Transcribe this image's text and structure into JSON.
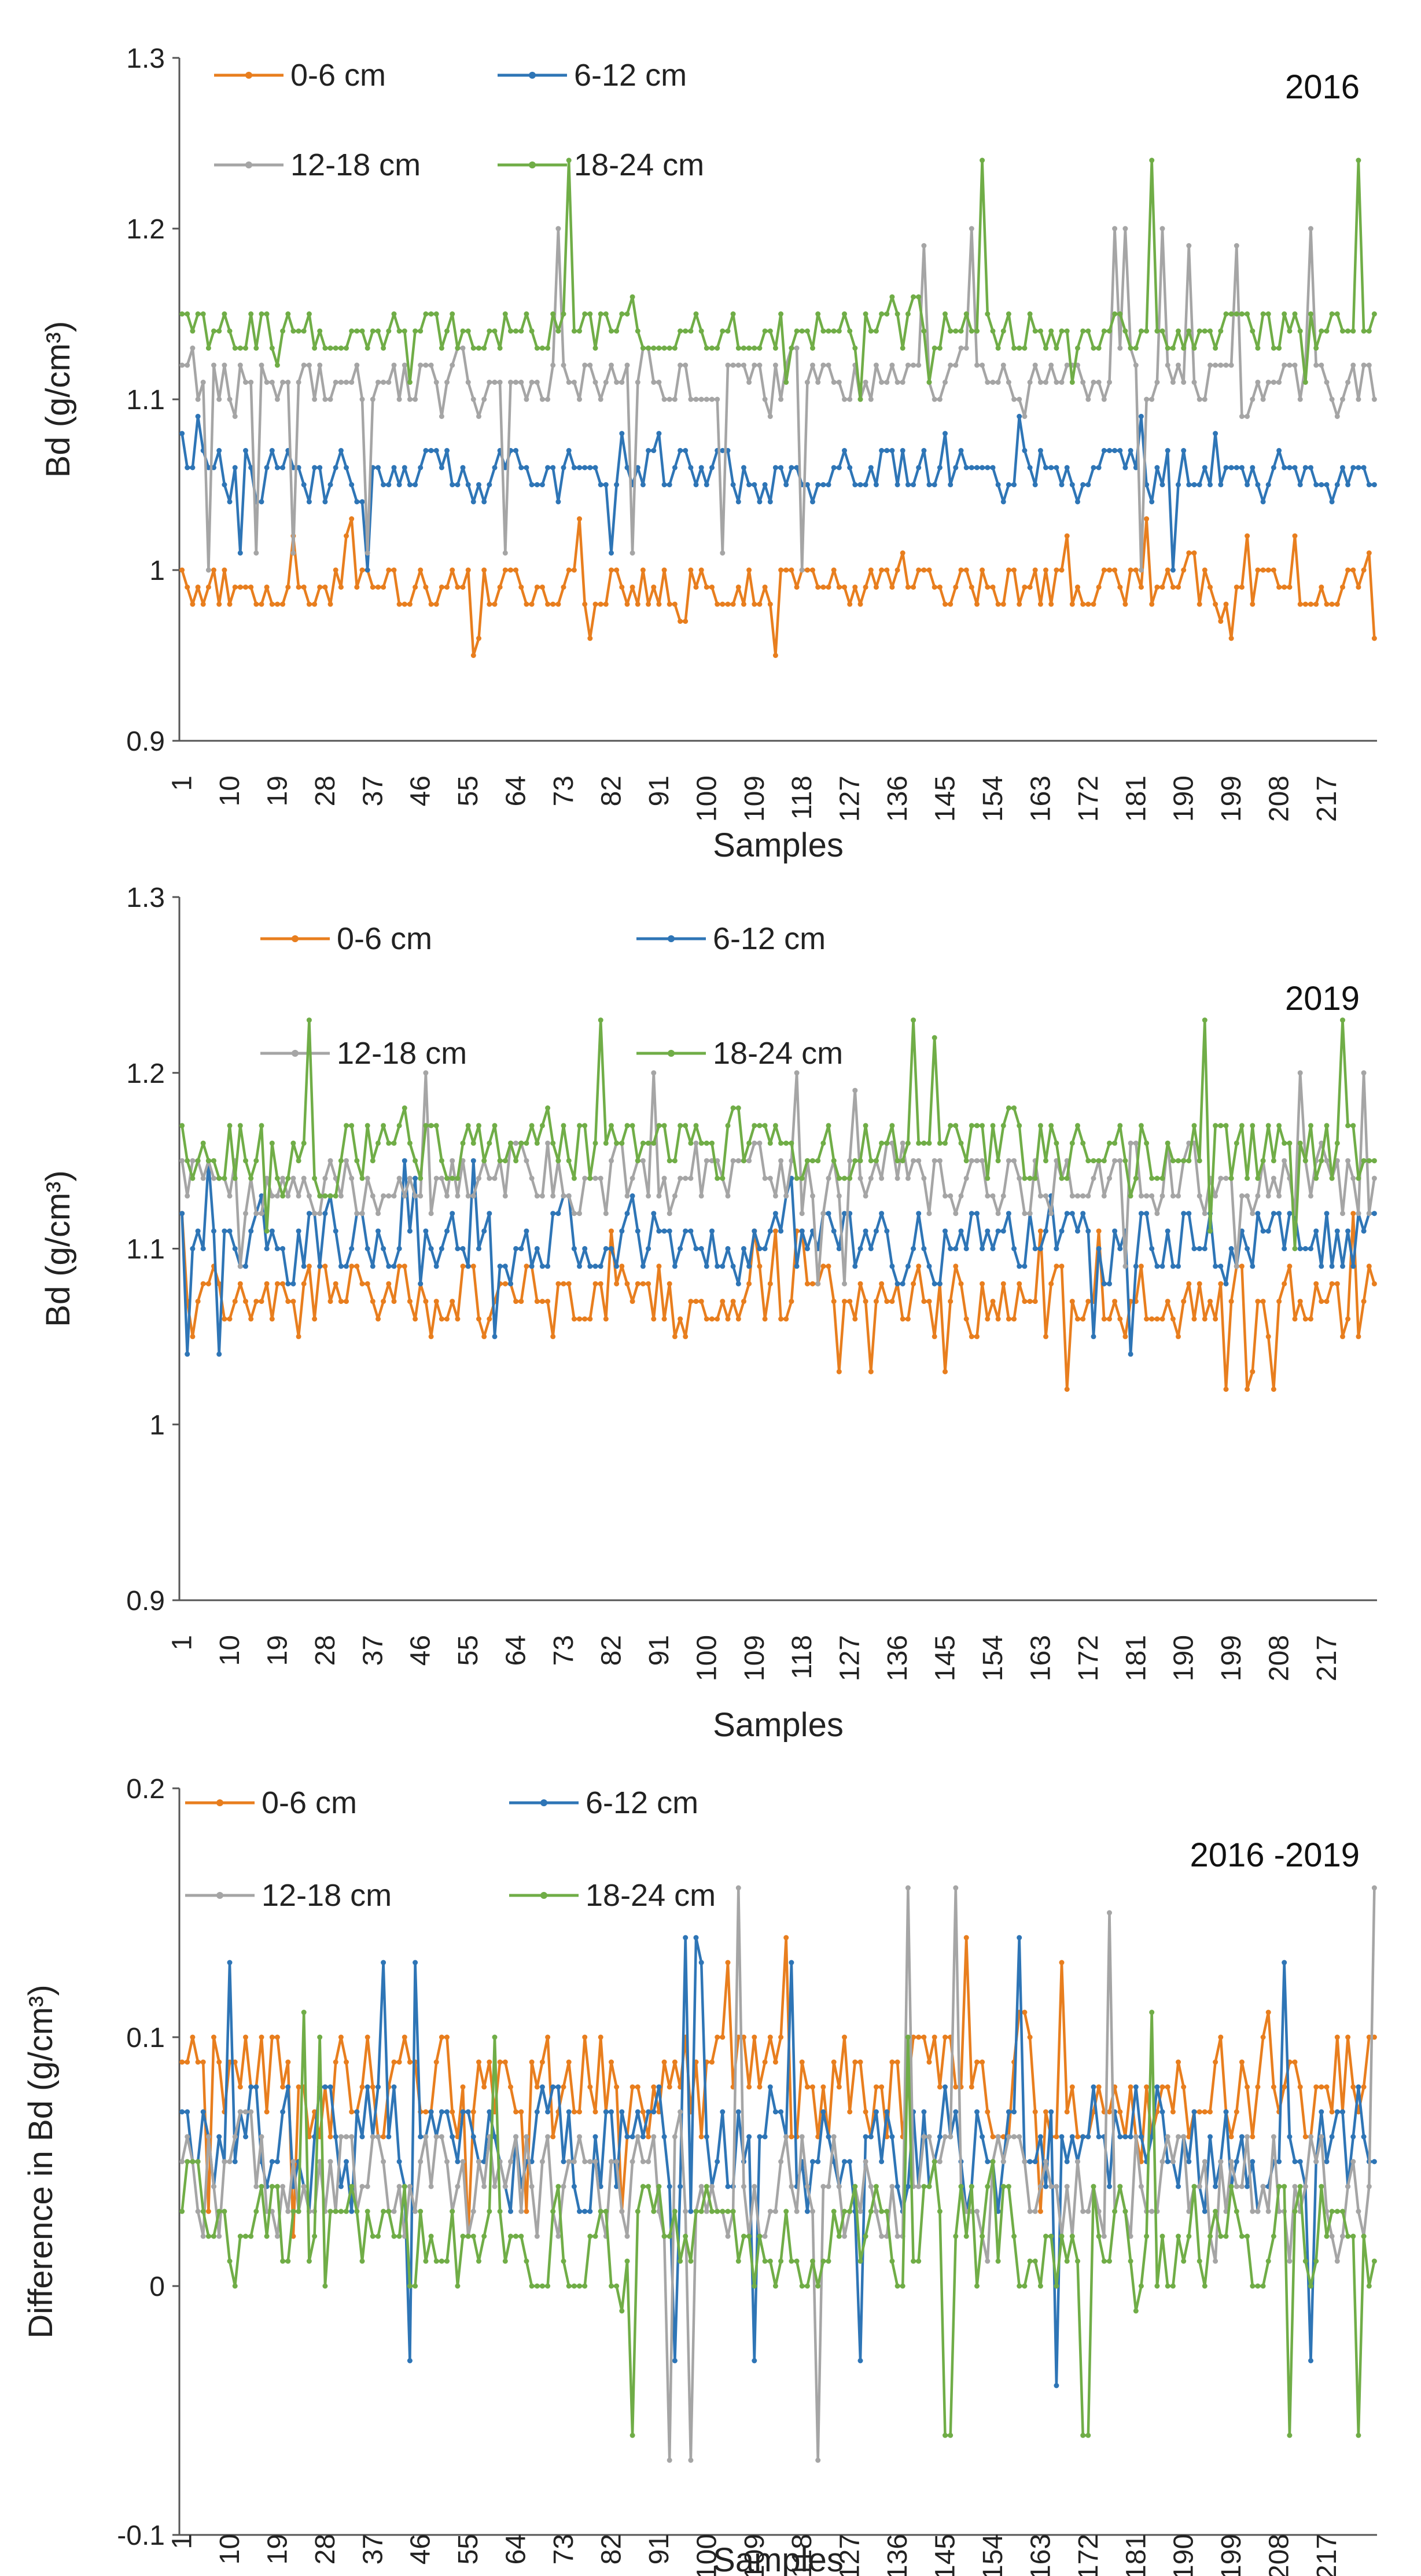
{
  "chart_data": [
    {
      "type": "line",
      "title": "2016",
      "xlabel": "Samples",
      "ylabel": "Bd (g/cm³)",
      "ylim": [
        0.9,
        1.3
      ],
      "yticks": [
        "0.9",
        "1",
        "1.1",
        "1.2",
        "1.3"
      ],
      "x_tick_labels": [
        "1",
        "10",
        "19",
        "28",
        "37",
        "46",
        "55",
        "64",
        "73",
        "82",
        "91",
        "100",
        "109",
        "118",
        "127",
        "136",
        "145",
        "154",
        "163",
        "172",
        "181",
        "190",
        "199",
        "208",
        "217"
      ],
      "x_count": 226,
      "series": [
        {
          "name": "0-6 cm",
          "color": "#E87E1E",
          "approx_mean": 0.99,
          "approx_amplitude": 0.02,
          "approx_min": 0.95,
          "approx_max": 1.03
        },
        {
          "name": "6-12 cm",
          "color": "#2E75B6",
          "approx_mean": 1.055,
          "approx_amplitude": 0.02,
          "approx_min": 1.0,
          "approx_max": 1.09
        },
        {
          "name": "12-18 cm",
          "color": "#A5A5A5",
          "approx_mean": 1.11,
          "approx_amplitude": 0.025,
          "approx_min": 1.0,
          "approx_max": 1.2
        },
        {
          "name": "18-24 cm",
          "color": "#70AD47",
          "approx_mean": 1.14,
          "approx_amplitude": 0.02,
          "approx_min": 1.1,
          "approx_max": 1.24
        }
      ],
      "grid": false,
      "legend": "top-left"
    },
    {
      "type": "line",
      "title": "2019",
      "xlabel": "Samples",
      "ylabel": "Bd (g/cm³)",
      "ylim": [
        0.9,
        1.3
      ],
      "yticks": [
        "0.9",
        "1",
        "1.1",
        "1.2",
        "1.3"
      ],
      "x_tick_labels": [
        "1",
        "10",
        "19",
        "28",
        "37",
        "46",
        "55",
        "64",
        "73",
        "82",
        "91",
        "100",
        "109",
        "118",
        "127",
        "136",
        "145",
        "154",
        "163",
        "172",
        "181",
        "190",
        "199",
        "208",
        "217"
      ],
      "x_count": 226,
      "series": [
        {
          "name": "0-6 cm",
          "color": "#E87E1E",
          "approx_mean": 1.07,
          "approx_amplitude": 0.03,
          "approx_min": 1.02,
          "approx_max": 1.12
        },
        {
          "name": "6-12 cm",
          "color": "#2E75B6",
          "approx_mean": 1.105,
          "approx_amplitude": 0.03,
          "approx_min": 1.04,
          "approx_max": 1.15
        },
        {
          "name": "12-18 cm",
          "color": "#A5A5A5",
          "approx_mean": 1.14,
          "approx_amplitude": 0.03,
          "approx_min": 1.08,
          "approx_max": 1.2
        },
        {
          "name": "18-24 cm",
          "color": "#70AD47",
          "approx_mean": 1.155,
          "approx_amplitude": 0.03,
          "approx_min": 1.1,
          "approx_max": 1.23
        }
      ],
      "grid": false,
      "legend": "top-left"
    },
    {
      "type": "line",
      "title": "2016 -2019",
      "xlabel": "Samples",
      "ylabel": "Difference in Bd (g/cm³)",
      "ylim": [
        -0.1,
        0.2
      ],
      "yticks": [
        "-0.1",
        "0",
        "0.1",
        "0.2"
      ],
      "x_tick_labels": [
        "1",
        "10",
        "19",
        "28",
        "37",
        "46",
        "55",
        "64",
        "73",
        "82",
        "91",
        "100",
        "109",
        "118",
        "127",
        "136",
        "145",
        "154",
        "163",
        "172",
        "181",
        "190",
        "199",
        "208",
        "217"
      ],
      "x_count": 226,
      "series": [
        {
          "name": "0-6 cm",
          "color": "#E87E1E",
          "approx_mean": 0.08,
          "approx_amplitude": 0.035,
          "approx_min": 0.02,
          "approx_max": 0.14
        },
        {
          "name": "6-12 cm",
          "color": "#2E75B6",
          "approx_mean": 0.055,
          "approx_amplitude": 0.035,
          "approx_min": -0.04,
          "approx_max": 0.14
        },
        {
          "name": "12-18 cm",
          "color": "#A5A5A5",
          "approx_mean": 0.04,
          "approx_amplitude": 0.035,
          "approx_min": -0.07,
          "approx_max": 0.16
        },
        {
          "name": "18-24 cm",
          "color": "#70AD47",
          "approx_mean": 0.02,
          "approx_amplitude": 0.035,
          "approx_min": -0.06,
          "approx_max": 0.11
        }
      ],
      "grid": false,
      "legend": "top-left"
    }
  ]
}
